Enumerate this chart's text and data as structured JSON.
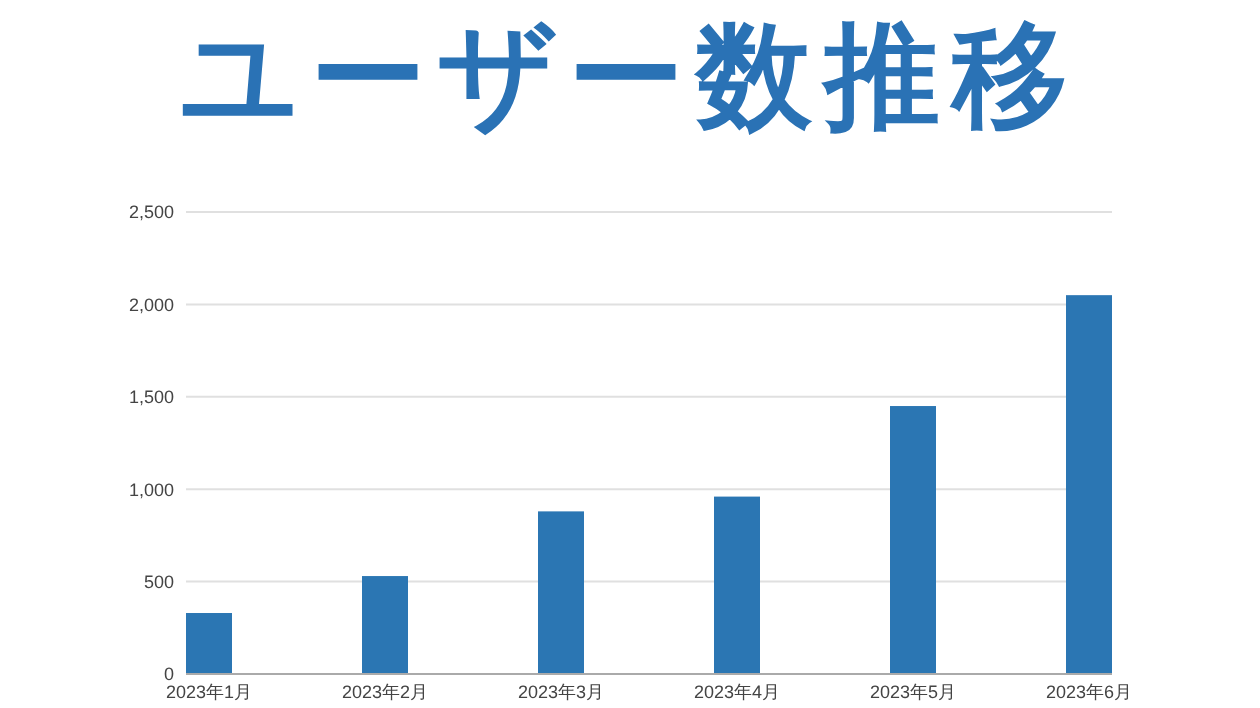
{
  "chart_data": {
    "type": "bar",
    "title": "ユーザー数推移",
    "categories": [
      "2023年1月",
      "2023年2月",
      "2023年3月",
      "2023年4月",
      "2023年5月",
      "2023年6月"
    ],
    "values": [
      330,
      530,
      880,
      960,
      1450,
      2050
    ],
    "color": "#2b76b3",
    "ylim": [
      0,
      2500
    ],
    "yticks": [
      {
        "value": 0,
        "label": "0"
      },
      {
        "value": 500,
        "label": "500"
      },
      {
        "value": 1000,
        "label": "1,000"
      },
      {
        "value": 1500,
        "label": "1,500"
      },
      {
        "value": 2000,
        "label": "2,000"
      },
      {
        "value": 2500,
        "label": "2,500"
      }
    ],
    "grid": true
  }
}
